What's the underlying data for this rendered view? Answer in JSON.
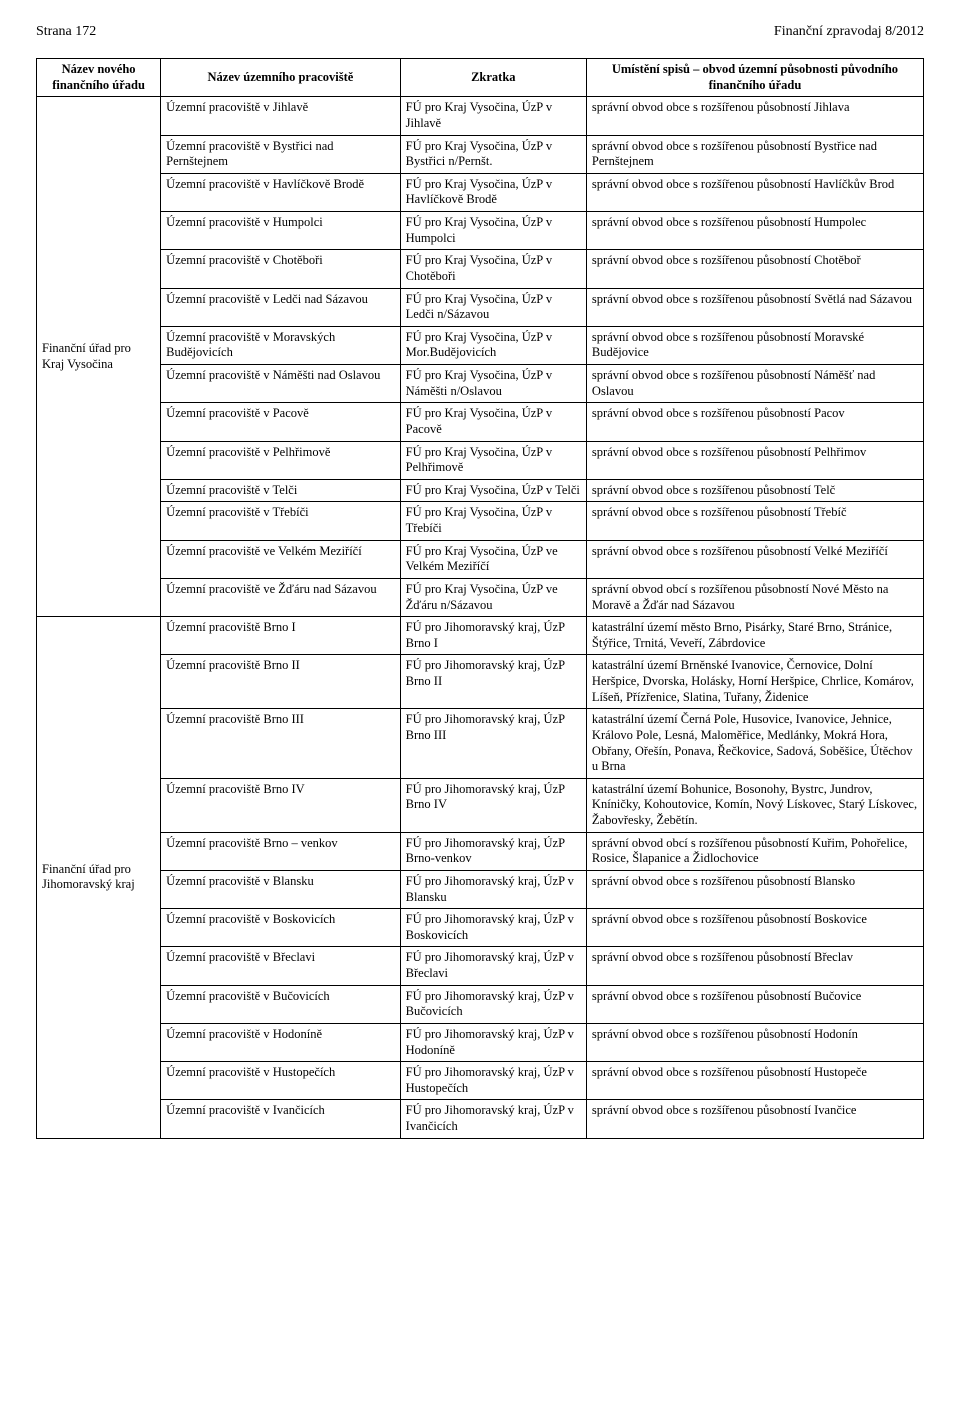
{
  "header": {
    "left": "Strana 172",
    "right": "Finanční zpravodaj 8/2012"
  },
  "table": {
    "head": {
      "c1": "Název nového finančního úřadu",
      "c2": "Název územního pracoviště",
      "c3": "Zkratka",
      "c4": "Umístění spisů – obvod územní působnosti původního finančního úřadu"
    },
    "groups": [
      {
        "fin": "Finanční úřad pro Kraj Vysočina",
        "rows": [
          {
            "p": "Územní pracoviště v Jihlavě",
            "z": "FÚ pro Kraj Vysočina, ÚzP v Jihlavě",
            "u": "správní obvod obce s rozšířenou působností Jihlava"
          },
          {
            "p": "Územní pracoviště v Bystřici nad Pernštejnem",
            "z": "FÚ pro Kraj Vysočina, ÚzP v Bystřici n/Pernšt.",
            "u": "správní obvod obce s rozšířenou působností Bystřice nad Pernštejnem"
          },
          {
            "p": "Územní pracoviště v Havlíčkově Brodě",
            "z": "FÚ pro Kraj Vysočina, ÚzP v Havlíčkově Brodě",
            "u": "správní obvod obce s rozšířenou působností Havlíčkův Brod"
          },
          {
            "p": "Územní pracoviště v Humpolci",
            "z": "FÚ pro Kraj Vysočina, ÚzP v Humpolci",
            "u": "správní obvod obce s rozšířenou působností Humpolec"
          },
          {
            "p": "Územní pracoviště v Chotěboři",
            "z": "FÚ pro Kraj Vysočina, ÚzP v Chotěboři",
            "u": "správní obvod obce s rozšířenou působností Chotěboř"
          },
          {
            "p": "Územní pracoviště v Ledči nad Sázavou",
            "z": "FÚ pro Kraj Vysočina, ÚzP v Ledči n/Sázavou",
            "u": "správní obvod obce s rozšířenou působností Světlá nad Sázavou"
          },
          {
            "p": "Územní pracoviště v Moravských Budějovicích",
            "z": "FÚ pro Kraj Vysočina, ÚzP v Mor.Budějovicích",
            "u": "správní obvod obce s rozšířenou působností Moravské Budějovice"
          },
          {
            "p": "Územní pracoviště v Náměšti nad Oslavou",
            "z": "FÚ pro Kraj Vysočina, ÚzP v Náměšti n/Oslavou",
            "u": "správní obvod obce s rozšířenou působností Náměšť nad Oslavou"
          },
          {
            "p": "Územní pracoviště v Pacově",
            "z": "FÚ pro Kraj Vysočina, ÚzP v Pacově",
            "u": "správní obvod obce s rozšířenou působností Pacov"
          },
          {
            "p": "Územní pracoviště v Pelhřimově",
            "z": "FÚ pro Kraj Vysočina, ÚzP v Pelhřimově",
            "u": "správní obvod obce s rozšířenou působností Pelhřimov"
          },
          {
            "p": "Územní pracoviště v Telči",
            "z": "FÚ pro Kraj Vysočina, ÚzP v Telči",
            "u": "správní obvod obce s rozšířenou působností Telč"
          },
          {
            "p": "Územní pracoviště v Třebíči",
            "z": "FÚ pro Kraj Vysočina, ÚzP v Třebíči",
            "u": "správní obvod obce s rozšířenou působností Třebíč"
          },
          {
            "p": "Územní pracoviště ve Velkém Meziříčí",
            "z": "FÚ pro Kraj Vysočina, ÚzP ve Velkém Meziříčí",
            "u": "správní obvod obce s rozšířenou působností Velké Meziříčí"
          },
          {
            "p": "Územní pracoviště ve Žďáru nad Sázavou",
            "z": "FÚ pro Kraj Vysočina, ÚzP ve Žďáru n/Sázavou",
            "u": "správní obvod obcí s rozšířenou působností Nové Město na Moravě a Žďár nad Sázavou"
          }
        ]
      },
      {
        "fin": "Finanční úřad pro Jihomoravský kraj",
        "rows": [
          {
            "p": "Územní pracoviště Brno I",
            "z": "FÚ pro Jihomoravský kraj, ÚzP Brno I",
            "u": "katastrální území město Brno, Pisárky, Staré Brno, Stránice, Štýřice, Trnitá, Veveří, Zábrdovice"
          },
          {
            "p": "Územní pracoviště Brno II",
            "z": "FÚ pro Jihomoravský kraj, ÚzP Brno II",
            "u": "katastrální území Brněnské Ivanovice, Černovice, Dolní Heršpice, Dvorska, Holásky, Horní Heršpice, Chrlice, Komárov, Líšeň, Přízřenice, Slatina, Tuřany, Židenice"
          },
          {
            "p": "Územní pracoviště Brno III",
            "z": "FÚ pro Jihomoravský kraj, ÚzP Brno III",
            "u": "katastrální území Černá Pole, Husovice, Ivanovice, Jehnice, Královo Pole, Lesná, Maloměřice, Medlánky, Mokrá Hora, Obřany, Ořešín, Ponava, Řečkovice, Sadová, Soběšice, Útěchov u Brna"
          },
          {
            "p": "Územní pracoviště Brno IV",
            "z": "FÚ pro Jihomoravský kraj, ÚzP Brno IV",
            "u": "katastrální území Bohunice, Bosonohy, Bystrc, Jundrov, Kníničky, Kohoutovice, Komín, Nový Lískovec, Starý Lískovec, Žabovřesky, Žebětín."
          },
          {
            "p": "Územní pracoviště Brno – venkov",
            "z": "FÚ pro Jihomoravský kraj, ÚzP Brno-venkov",
            "u": "správní obvod obcí s rozšířenou působností Kuřim, Pohořelice, Rosice, Šlapanice a Židlochovice"
          },
          {
            "p": "Územní pracoviště v Blansku",
            "z": "FÚ pro Jihomoravský kraj, ÚzP v Blansku",
            "u": "správní obvod obce s rozšířenou působností Blansko"
          },
          {
            "p": "Územní pracoviště v Boskovicích",
            "z": "FÚ pro Jihomoravský kraj, ÚzP v Boskovicích",
            "u": "správní obvod obce s rozšířenou působností Boskovice"
          },
          {
            "p": "Územní pracoviště v Břeclavi",
            "z": "FÚ pro Jihomoravský kraj, ÚzP v Břeclavi",
            "u": "správní obvod obce s rozšířenou působností Břeclav"
          },
          {
            "p": "Územní pracoviště v Bučovicích",
            "z": "FÚ pro Jihomoravský kraj, ÚzP v Bučovicích",
            "u": "správní obvod obce s rozšířenou působností Bučovice"
          },
          {
            "p": "Územní pracoviště v Hodoníně",
            "z": "FÚ pro Jihomoravský kraj, ÚzP v Hodoníně",
            "u": "správní obvod obce s rozšířenou působností Hodonín"
          },
          {
            "p": "Územní pracoviště v Hustopečích",
            "z": "FÚ pro Jihomoravský kraj, ÚzP v Hustopečích",
            "u": "správní obvod obce s rozšířenou působností Hustopeče"
          },
          {
            "p": "Územní pracoviště v Ivančicích",
            "z": "FÚ pro Jihomoravský kraj, ÚzP v Ivančicích",
            "u": "správní obvod obce s rozšířenou působností Ivančice"
          }
        ]
      }
    ]
  }
}
